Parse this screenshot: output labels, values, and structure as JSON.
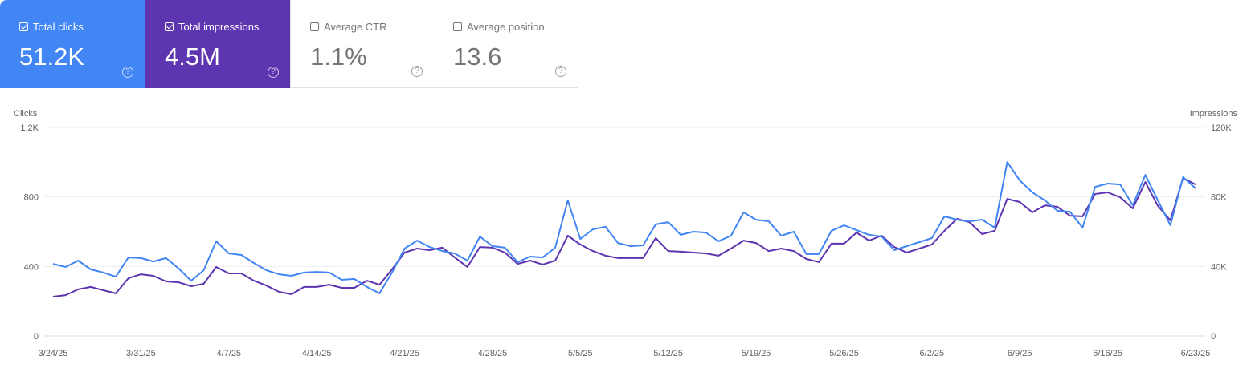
{
  "metrics": [
    {
      "label": "Total clicks",
      "value": "51.2K",
      "checked": true,
      "color": "#4285f4"
    },
    {
      "label": "Total impressions",
      "value": "4.5M",
      "checked": true,
      "color": "#5e35b1"
    },
    {
      "label": "Average CTR",
      "value": "1.1%",
      "checked": false
    },
    {
      "label": "Average position",
      "value": "13.6",
      "checked": false
    }
  ],
  "help_glyph": "?",
  "chart_data": {
    "type": "line",
    "left_axis": {
      "label": "Clicks",
      "ticks": [
        "0",
        "400",
        "800",
        "1.2K"
      ],
      "range": [
        0,
        1200
      ]
    },
    "right_axis": {
      "label": "Impressions",
      "ticks": [
        "0",
        "40K",
        "80K",
        "120K"
      ],
      "range": [
        0,
        120000
      ]
    },
    "x_start": "2025-03-24",
    "x_end": "2025-06-23",
    "x_ticks": [
      "3/24/25",
      "3/31/25",
      "4/7/25",
      "4/14/25",
      "4/21/25",
      "4/28/25",
      "5/5/25",
      "5/12/25",
      "5/19/25",
      "5/26/25",
      "6/2/25",
      "6/9/25",
      "6/16/25",
      "6/23/25"
    ],
    "grid": true,
    "series": [
      {
        "name": "Clicks",
        "axis": "left",
        "color": "#4285f4",
        "values": [
          415,
          397,
          434,
          383,
          365,
          341,
          452,
          448,
          429,
          448,
          388,
          318,
          378,
          545,
          475,
          466,
          420,
          378,
          355,
          346,
          365,
          369,
          365,
          323,
          328,
          282,
          245,
          365,
          503,
          549,
          512,
          489,
          475,
          434,
          572,
          517,
          508,
          425,
          457,
          452,
          508,
          780,
          558,
          614,
          628,
          535,
          517,
          521,
          642,
          655,
          582,
          600,
          595,
          545,
          577,
          711,
          669,
          660,
          577,
          600,
          471,
          471,
          605,
          637,
          609,
          582,
          572,
          494,
          517,
          540,
          563,
          688,
          669,
          660,
          669,
          623,
          1001,
          895,
          826,
          780,
          720,
          715,
          623,
          858,
          877,
          872,
          752,
          927,
          780,
          637,
          914,
          849
        ]
      },
      {
        "name": "Impressions",
        "axis": "right",
        "color": "#5e35b1",
        "values": [
          22600,
          23500,
          26800,
          28200,
          26300,
          24500,
          33200,
          35500,
          34600,
          31400,
          30900,
          28600,
          30000,
          39700,
          36000,
          36000,
          31800,
          29000,
          25400,
          24000,
          28200,
          28200,
          29500,
          27700,
          27700,
          31800,
          29500,
          38300,
          48000,
          50300,
          49400,
          50800,
          45200,
          39700,
          51200,
          50800,
          48000,
          41500,
          43400,
          41100,
          43400,
          57700,
          52600,
          48900,
          46200,
          44800,
          44800,
          44800,
          56300,
          48900,
          48500,
          48000,
          47500,
          46200,
          50300,
          54900,
          53500,
          48900,
          50300,
          48900,
          44300,
          42500,
          53100,
          53100,
          59500,
          54900,
          57700,
          51200,
          48000,
          50300,
          52600,
          60500,
          67400,
          65500,
          58600,
          60500,
          78900,
          77100,
          71100,
          75200,
          74300,
          69200,
          68800,
          81700,
          82600,
          79800,
          73400,
          88600,
          74800,
          66500,
          90900,
          87200
        ]
      }
    ]
  }
}
